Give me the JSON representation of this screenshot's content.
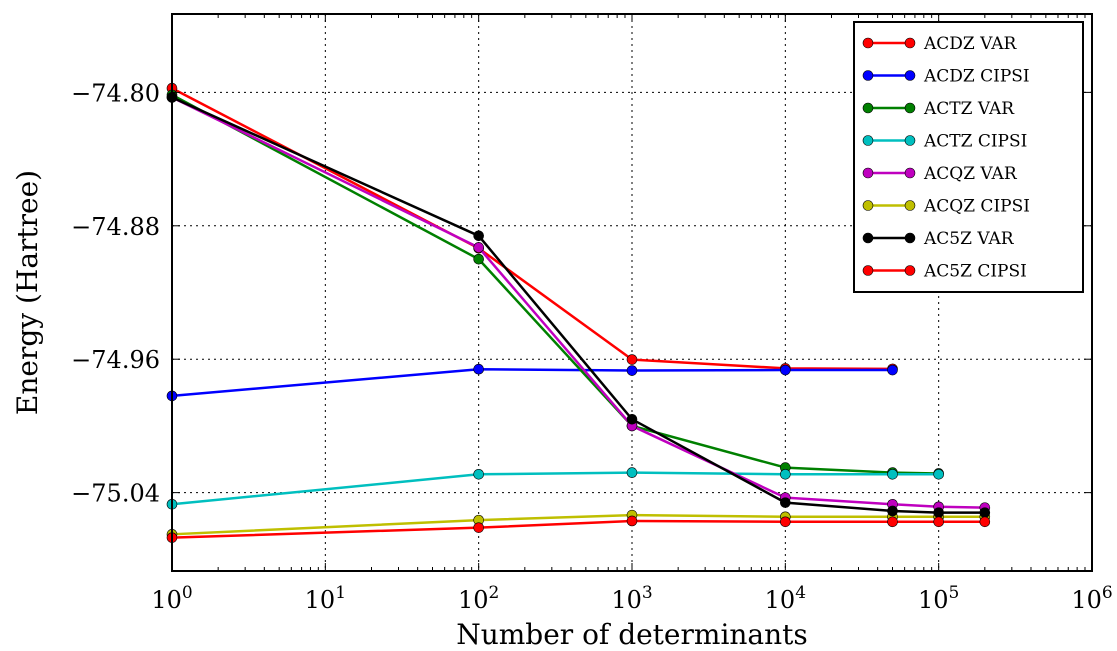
{
  "chart_data": {
    "type": "line",
    "title": "",
    "xlabel": "Number of determinants",
    "ylabel": "Energy (Hartree)",
    "xscale": "log",
    "xlim": [
      1,
      1000000
    ],
    "ylim": [
      -75.087,
      -74.753
    ],
    "grid": true,
    "legend_position": "top-right",
    "x_ticks": [
      {
        "value": 1,
        "base": "10",
        "exp": "0"
      },
      {
        "value": 10,
        "base": "10",
        "exp": "1"
      },
      {
        "value": 100,
        "base": "10",
        "exp": "2"
      },
      {
        "value": 1000,
        "base": "10",
        "exp": "3"
      },
      {
        "value": 10000,
        "base": "10",
        "exp": "4"
      },
      {
        "value": 100000,
        "base": "10",
        "exp": "5"
      },
      {
        "value": 1000000,
        "base": "10",
        "exp": "6"
      }
    ],
    "y_ticks": [
      {
        "value": -74.8,
        "label": "−74.80"
      },
      {
        "value": -74.88,
        "label": "−74.88"
      },
      {
        "value": -74.96,
        "label": "−74.96"
      },
      {
        "value": -75.04,
        "label": "−75.04"
      }
    ],
    "series": [
      {
        "name": "ACDZ VAR",
        "color": "#ff0000",
        "x": [
          1,
          100,
          1000,
          10000,
          50000
        ],
        "y": [
          -74.7975,
          -74.8935,
          -74.9602,
          -74.9655,
          -74.9658
        ]
      },
      {
        "name": "ACDZ CIPSI",
        "color": "#0000ff",
        "x": [
          1,
          100,
          1000,
          10000,
          50000
        ],
        "y": [
          -74.982,
          -74.966,
          -74.9668,
          -74.9665,
          -74.9665
        ]
      },
      {
        "name": "ACTZ VAR",
        "color": "#008000",
        "x": [
          1,
          100,
          1000,
          10000,
          50000,
          100000
        ],
        "y": [
          -74.8015,
          -74.9,
          -75.0,
          -75.025,
          -75.028,
          -75.0285
        ]
      },
      {
        "name": "ACTZ CIPSI",
        "color": "#00bfbf",
        "x": [
          1,
          100,
          1000,
          10000,
          50000,
          100000
        ],
        "y": [
          -75.047,
          -75.029,
          -75.028,
          -75.029,
          -75.029,
          -75.029
        ]
      },
      {
        "name": "ACQZ VAR",
        "color": "#bf00bf",
        "x": [
          1,
          100,
          1000,
          10000,
          50000,
          100000,
          200000
        ],
        "y": [
          -74.803,
          -74.893,
          -75.0,
          -75.043,
          -75.047,
          -75.0485,
          -75.049
        ]
      },
      {
        "name": "ACQZ CIPSI",
        "color": "#bfbf00",
        "x": [
          1,
          100,
          1000,
          10000,
          50000,
          100000,
          200000
        ],
        "y": [
          -75.065,
          -75.0565,
          -75.0535,
          -75.0545,
          -75.0545,
          -75.0545,
          -75.0545
        ]
      },
      {
        "name": "AC5Z VAR",
        "color": "#000000",
        "x": [
          1,
          100,
          1000,
          10000,
          50000,
          100000,
          200000
        ],
        "y": [
          -74.803,
          -74.886,
          -74.996,
          -75.046,
          -75.051,
          -75.052,
          -75.052
        ]
      },
      {
        "name": "AC5Z CIPSI",
        "color": "#ff0000",
        "x": [
          1,
          100,
          1000,
          10000,
          50000,
          100000,
          200000
        ],
        "y": [
          -75.067,
          -75.061,
          -75.057,
          -75.0575,
          -75.0575,
          -75.0575,
          -75.0575
        ]
      }
    ]
  }
}
